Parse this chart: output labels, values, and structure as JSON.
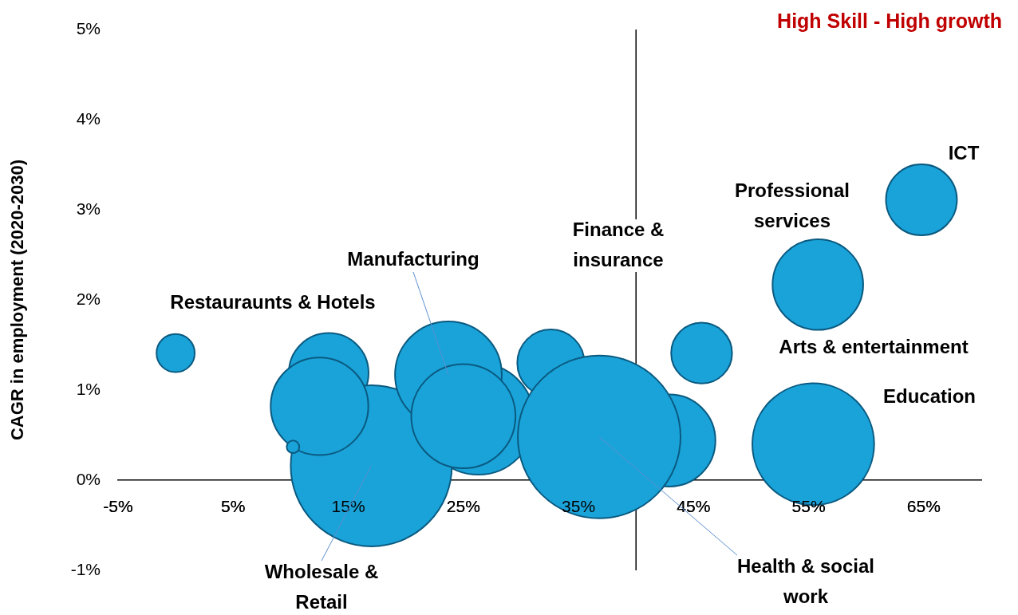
{
  "chart_data": {
    "type": "bubble",
    "ylabel": "CAGR in employment (2020-2030)",
    "x": [
      0.0,
      13.3,
      26.3,
      42.9,
      17.0,
      23.7,
      25.0,
      12.5,
      10.2,
      32.6,
      36.8,
      45.7,
      55.8,
      64.8,
      55.4
    ],
    "values": [
      1.41,
      1.19,
      0.68,
      0.44,
      0.16,
      1.17,
      0.71,
      0.82,
      0.37,
      1.3,
      0.48,
      1.41,
      2.17,
      3.11,
      0.4
    ],
    "sizes": [
      0.055,
      0.24,
      0.47,
      0.32,
      0.98,
      0.43,
      0.41,
      0.36,
      0.006,
      0.17,
      1,
      0.14,
      0.31,
      0.19,
      0.56
    ],
    "color": "#1aa3d9",
    "xlim": [
      -5,
      70
    ],
    "ylim": [
      -1,
      5
    ],
    "xticks": [
      {
        "value": -5,
        "label": "-5%"
      },
      {
        "value": 5,
        "label": "5%"
      },
      {
        "value": 15,
        "label": "15%"
      },
      {
        "value": 25,
        "label": "25%"
      },
      {
        "value": 35,
        "label": "35%"
      },
      {
        "value": 45,
        "label": "45%"
      },
      {
        "value": 55,
        "label": "55%"
      },
      {
        "value": 65,
        "label": "65%"
      }
    ],
    "yticks": [
      {
        "value": -1,
        "label": "-1%"
      },
      {
        "value": 0,
        "label": "0%"
      },
      {
        "value": 1,
        "label": "1%"
      },
      {
        "value": 2,
        "label": "2%"
      },
      {
        "value": 3,
        "label": "3%"
      },
      {
        "value": 4,
        "label": "4%"
      },
      {
        "value": 5,
        "label": "5%"
      }
    ],
    "ref_lines": [
      {
        "axis": "x",
        "value": 40
      }
    ],
    "annotations": [
      {
        "text": "Manufacturing",
        "x": 23.7,
        "y": 1.17
      },
      {
        "text": "Wholesale & Retail",
        "x": 17.0,
        "y": 0.16
      },
      {
        "text": "Health & social work",
        "x": 36.8,
        "y": 0.48
      },
      "Restauraunts & Hotels",
      "Finance & insurance",
      "Professional services",
      "ICT",
      "Arts & entertainment",
      "Education",
      "High Skill - High growth"
    ]
  }
}
